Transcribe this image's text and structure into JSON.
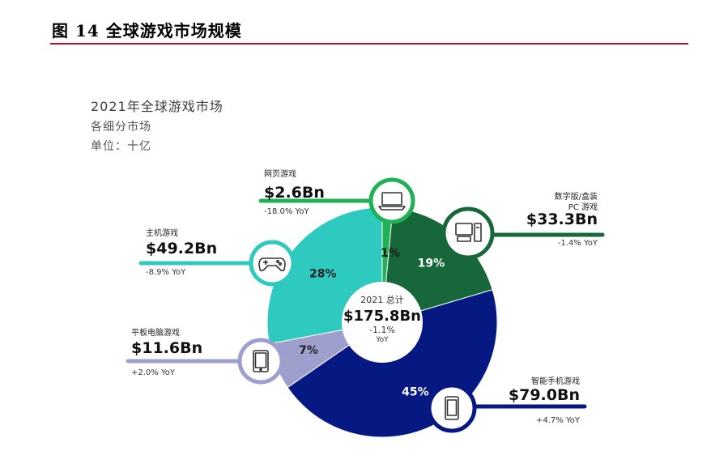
{
  "figure": {
    "caption": "图  14 全球游戏市场规模"
  },
  "chart_data": {
    "type": "pie",
    "title": "2021年全球游戏市场",
    "subtitle": "各细分市场",
    "unit": "单位：十亿",
    "center": {
      "label": "2021 总计",
      "value": "$175.8Bn",
      "change": "-1.1%",
      "change_label": "YoY"
    },
    "series": [
      {
        "name": "网页游戏",
        "value": 2.6,
        "value_label": "$2.6Bn",
        "percent": 1,
        "percent_label": "1%",
        "yoy": "-18.0% YoY",
        "color": "#1fb153",
        "icon": "laptop-icon"
      },
      {
        "name": "数字版/盒装 PC 游戏",
        "name_lines": [
          "数字版/盒装",
          "PC 游戏"
        ],
        "value": 33.3,
        "value_label": "$33.3Bn",
        "percent": 19,
        "percent_label": "19%",
        "yoy": "-1.4% YoY",
        "color": "#16683a",
        "icon": "desktop-pc-icon"
      },
      {
        "name": "智能手机游戏",
        "value": 79.0,
        "value_label": "$79.0Bn",
        "percent": 45,
        "percent_label": "45%",
        "yoy": "+4.7% YoY",
        "color": "#061882",
        "icon": "smartphone-icon"
      },
      {
        "name": "平板电脑游戏",
        "value": 11.6,
        "value_label": "$11.6Bn",
        "percent": 7,
        "percent_label": "7%",
        "yoy": "+2.0% YoY",
        "color": "#9f9fce",
        "icon": "tablet-icon"
      },
      {
        "name": "主机游戏",
        "value": 49.2,
        "value_label": "$49.2Bn",
        "percent": 28,
        "percent_label": "28%",
        "yoy": "-8.9% YoY",
        "color": "#2ecabf",
        "icon": "gamepad-icon"
      }
    ]
  }
}
